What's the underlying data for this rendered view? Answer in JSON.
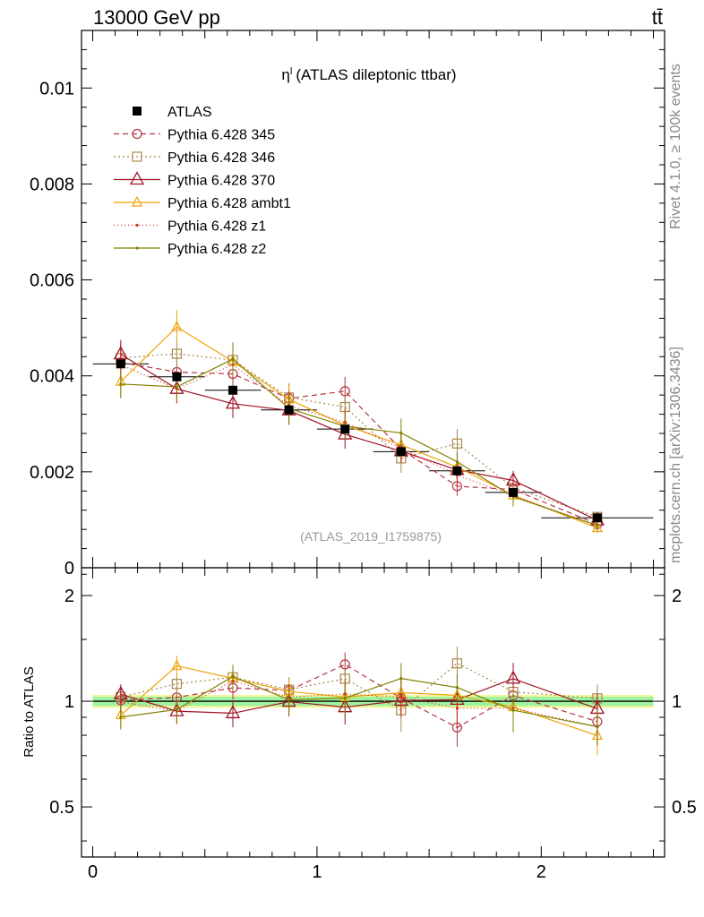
{
  "header": {
    "energy_label": "13000 GeV pp",
    "process_label": "tt̄"
  },
  "side_labels": {
    "rivet": "Rivet 4.1.0, ≥ 100k events",
    "mcplots": "mcplots.cern.ch [arXiv:1306.3436]"
  },
  "chart_data": {
    "type": "line",
    "title_symbol": "η",
    "title_sup": "l",
    "title": "(ATLAS dileptonic ttbar)",
    "analysis_id": "(ATLAS_2019_I1759875)",
    "xlim": [
      -0.05,
      2.55
    ],
    "ylim": [
      0,
      0.0112
    ],
    "x_ticks": [
      "0",
      "1",
      "2"
    ],
    "y_ticks": [
      "0",
      "0.002",
      "0.004",
      "0.006",
      "0.008",
      "0.01"
    ],
    "x": [
      0.125,
      0.375,
      0.625,
      0.875,
      1.125,
      1.375,
      1.625,
      1.875,
      2.25
    ],
    "x_err": [
      0.125,
      0.125,
      0.125,
      0.125,
      0.125,
      0.125,
      0.125,
      0.125,
      0.25
    ],
    "data": {
      "name": "ATLAS",
      "values": [
        0.00425,
        0.00398,
        0.0037,
        0.00329,
        0.00289,
        0.00242,
        0.00202,
        0.00157,
        0.00104
      ],
      "errors": [
        7e-05,
        7e-05,
        7e-05,
        6e-05,
        5e-05,
        5e-05,
        4e-05,
        4e-05,
        3e-05
      ]
    },
    "series": [
      {
        "name": "Pythia 6.428 345",
        "color": "#b63545",
        "dash": "6,4",
        "marker": "circle",
        "values": [
          0.00428,
          0.00408,
          0.00404,
          0.00353,
          0.00368,
          0.00247,
          0.0017,
          0.00163,
          0.00091
        ],
        "errors": [
          0.0003,
          0.0003,
          0.0003,
          0.0003,
          0.0003,
          0.0003,
          0.0002,
          0.0002,
          0.0001
        ]
      },
      {
        "name": "Pythia 6.428 346",
        "color": "#a8884b",
        "dash": "2,3",
        "marker": "square",
        "values": [
          0.00437,
          0.00446,
          0.00433,
          0.00355,
          0.00335,
          0.00228,
          0.00259,
          0.00167,
          0.00106
        ],
        "errors": [
          0.0003,
          0.0003,
          0.0003,
          0.0003,
          0.0003,
          0.0003,
          0.0003,
          0.0002,
          0.0001
        ]
      },
      {
        "name": "Pythia 6.428 370",
        "color": "#a01325",
        "dash": "",
        "marker": "triangle",
        "values": [
          0.00445,
          0.00373,
          0.00342,
          0.00328,
          0.00278,
          0.00243,
          0.00204,
          0.00182,
          0.00099
        ],
        "errors": [
          0.0003,
          0.0003,
          0.0003,
          0.0003,
          0.0003,
          0.0002,
          0.0002,
          0.0002,
          0.0001
        ]
      },
      {
        "name": "Pythia 6.428 ambt1",
        "color": "#f0a30a",
        "dash": "",
        "marker": "triangle-small",
        "values": [
          0.00388,
          0.00502,
          0.0043,
          0.00351,
          0.00297,
          0.00256,
          0.0021,
          0.00151,
          0.00083
        ],
        "errors": [
          0.0003,
          0.00035,
          0.0003,
          0.0003,
          0.0003,
          0.0003,
          0.0002,
          0.0002,
          0.0001
        ]
      },
      {
        "name": "Pythia 6.428 z1",
        "color": "#d62b1f",
        "dash": "1,3",
        "marker": "dot",
        "values": [
          0.00423,
          0.00373,
          0.00423,
          0.00338,
          0.00303,
          0.00249,
          0.00193,
          0.0015,
          0.00088
        ],
        "errors": [
          0.0003,
          0.0003,
          0.0003,
          0.0003,
          0.0003,
          0.0003,
          0.0002,
          0.0002,
          0.0001
        ]
      },
      {
        "name": "Pythia 6.428 z2",
        "color": "#808000",
        "dash": "",
        "marker": "dot",
        "values": [
          0.00383,
          0.00377,
          0.00435,
          0.00332,
          0.00295,
          0.00281,
          0.00221,
          0.00148,
          0.00088
        ],
        "errors": [
          0.0003,
          0.0003,
          0.00035,
          0.0003,
          0.0003,
          0.0003,
          0.0002,
          0.0002,
          0.0001
        ]
      }
    ],
    "ratio": {
      "ylabel": "Ratio to ATLAS",
      "ylim": [
        0.36,
        2.4
      ],
      "y_ticks": [
        "0.5",
        "1",
        "2"
      ],
      "band_values": [
        0.97,
        1.03
      ]
    }
  }
}
